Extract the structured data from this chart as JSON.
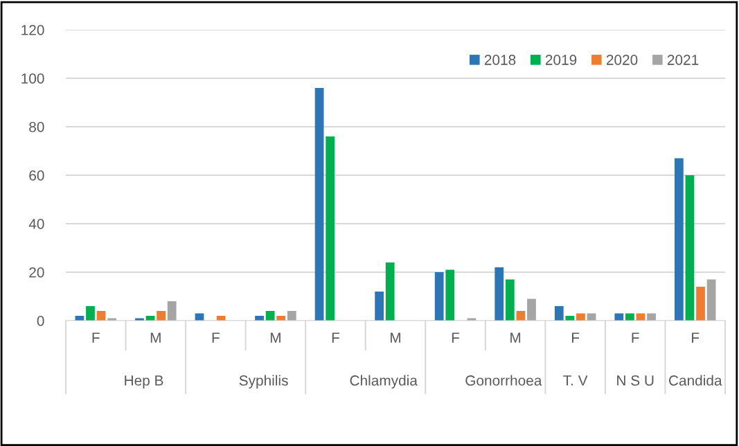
{
  "chart_data": {
    "type": "bar",
    "categories": [
      "F",
      "M",
      "F",
      "M",
      "F",
      "M",
      "F",
      "M",
      "F",
      "F",
      "F"
    ],
    "annotations": [
      "Hep B",
      "Syphilis",
      "Chlamydia",
      "Gonorrhoea",
      "T. V",
      "N S U",
      "Candida"
    ],
    "series": [
      {
        "name": "2018",
        "color": "#2e75b6",
        "values": [
          2,
          1,
          3,
          2,
          96,
          12,
          20,
          22,
          6,
          3,
          67
        ]
      },
      {
        "name": "2019",
        "color": "#00b050",
        "values": [
          6,
          2,
          0,
          4,
          76,
          24,
          21,
          17,
          2,
          3,
          60
        ]
      },
      {
        "name": "2020",
        "color": "#ed7d31",
        "values": [
          4,
          4,
          2,
          2,
          0,
          0,
          0,
          4,
          3,
          3,
          14
        ]
      },
      {
        "name": "2021",
        "color": "#a5a5a5",
        "values": [
          1,
          8,
          0,
          4,
          0,
          0,
          1,
          9,
          3,
          3,
          17
        ]
      }
    ],
    "ylim": [
      0,
      120
    ],
    "yticks": [
      0,
      20,
      40,
      60,
      80,
      100,
      120
    ],
    "grid": "y",
    "legend": "top right"
  }
}
